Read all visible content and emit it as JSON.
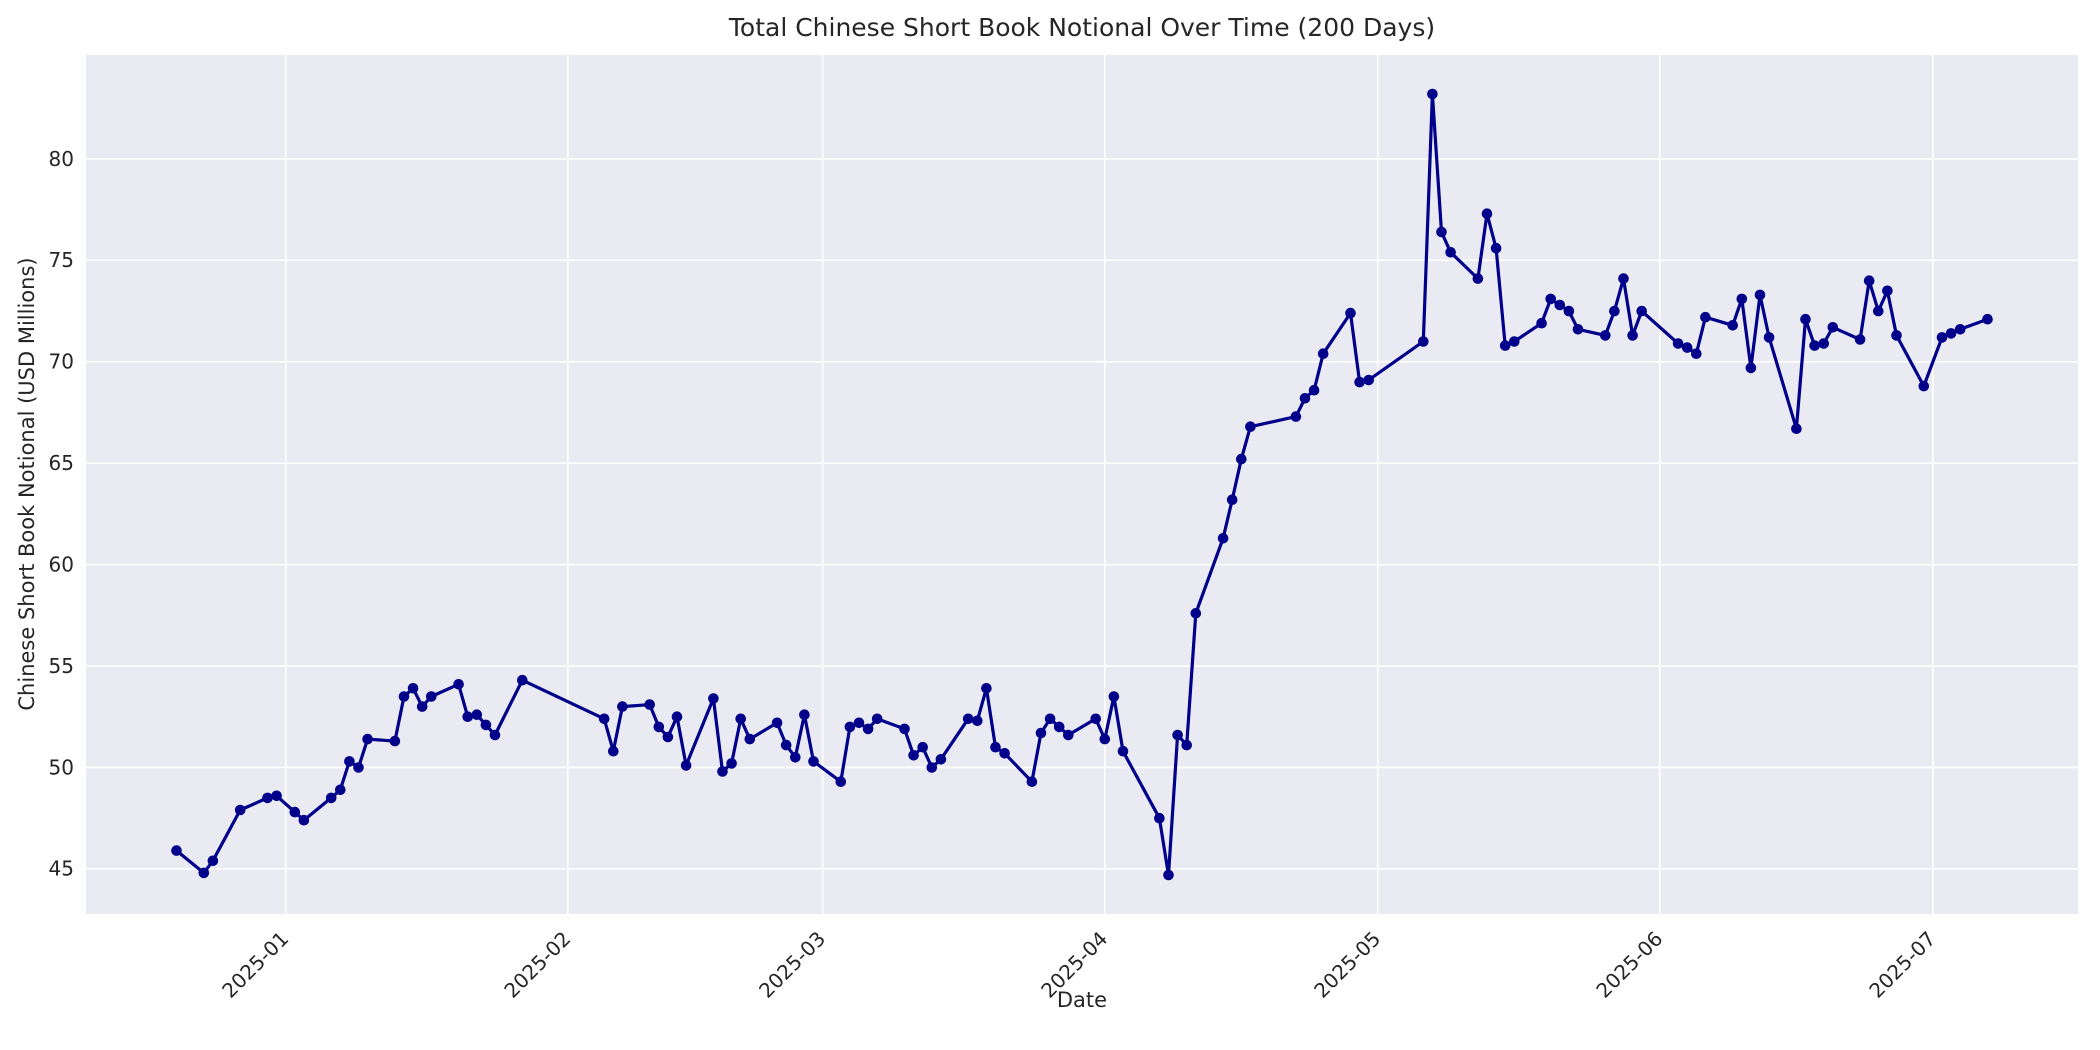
{
  "colors": {
    "line": "#00008B",
    "marker": "#00008B",
    "axes_background": "#EAEAF2",
    "figure_background": "#FFFFFF",
    "grid": "#FFFFFF",
    "text": "#262626"
  },
  "chart_data": {
    "type": "line",
    "title": "Total Chinese Short Book Notional Over Time (200 Days)",
    "xlabel": "Date",
    "ylabel": "Chinese Short Book Notional (USD Millions)",
    "x_tick_labels": [
      "2025-01",
      "2025-02",
      "2025-03",
      "2025-04",
      "2025-05",
      "2025-06",
      "2025-07"
    ],
    "y_ticks": [
      45,
      50,
      55,
      60,
      65,
      70,
      75,
      80
    ],
    "ylim": [
      42.8,
      85.1
    ],
    "grid": true,
    "legend": false,
    "marker": "circle",
    "line_color": "#00008B",
    "series": [
      {
        "name": "Total Chinese Short Book Notional",
        "dates": [
          "2024-12-20",
          "2024-12-23",
          "2024-12-24",
          "2024-12-27",
          "2024-12-30",
          "2024-12-31",
          "2025-01-02",
          "2025-01-03",
          "2025-01-06",
          "2025-01-07",
          "2025-01-08",
          "2025-01-09",
          "2025-01-10",
          "2025-01-13",
          "2025-01-14",
          "2025-01-15",
          "2025-01-16",
          "2025-01-17",
          "2025-01-20",
          "2025-01-21",
          "2025-01-22",
          "2025-01-23",
          "2025-01-24",
          "2025-01-27",
          "2025-02-05",
          "2025-02-06",
          "2025-02-07",
          "2025-02-10",
          "2025-02-11",
          "2025-02-12",
          "2025-02-13",
          "2025-02-14",
          "2025-02-17",
          "2025-02-18",
          "2025-02-19",
          "2025-02-20",
          "2025-02-21",
          "2025-02-24",
          "2025-02-25",
          "2025-02-26",
          "2025-02-27",
          "2025-02-28",
          "2025-03-03",
          "2025-03-04",
          "2025-03-05",
          "2025-03-06",
          "2025-03-07",
          "2025-03-10",
          "2025-03-11",
          "2025-03-12",
          "2025-03-13",
          "2025-03-14",
          "2025-03-17",
          "2025-03-18",
          "2025-03-19",
          "2025-03-20",
          "2025-03-21",
          "2025-03-24",
          "2025-03-25",
          "2025-03-26",
          "2025-03-27",
          "2025-03-28",
          "2025-03-31",
          "2025-04-01",
          "2025-04-02",
          "2025-04-03",
          "2025-04-07",
          "2025-04-08",
          "2025-04-09",
          "2025-04-10",
          "2025-04-11",
          "2025-04-14",
          "2025-04-15",
          "2025-04-16",
          "2025-04-17",
          "2025-04-22",
          "2025-04-23",
          "2025-04-24",
          "2025-04-25",
          "2025-04-28",
          "2025-04-29",
          "2025-04-30",
          "2025-05-06",
          "2025-05-07",
          "2025-05-08",
          "2025-05-09",
          "2025-05-12",
          "2025-05-13",
          "2025-05-14",
          "2025-05-15",
          "2025-05-16",
          "2025-05-19",
          "2025-05-20",
          "2025-05-21",
          "2025-05-22",
          "2025-05-23",
          "2025-05-26",
          "2025-05-27",
          "2025-05-28",
          "2025-05-29",
          "2025-05-30",
          "2025-06-03",
          "2025-06-04",
          "2025-06-05",
          "2025-06-06",
          "2025-06-09",
          "2025-06-10",
          "2025-06-11",
          "2025-06-12",
          "2025-06-13",
          "2025-06-16",
          "2025-06-17",
          "2025-06-18",
          "2025-06-19",
          "2025-06-20",
          "2025-06-23",
          "2025-06-24",
          "2025-06-25",
          "2025-06-26",
          "2025-06-27",
          "2025-06-30",
          "2025-07-02",
          "2025-07-03",
          "2025-07-04",
          "2025-07-07"
        ],
        "values": [
          45.9,
          44.8,
          45.4,
          47.9,
          48.5,
          48.6,
          47.8,
          47.4,
          48.5,
          48.9,
          50.3,
          50.0,
          51.4,
          51.3,
          53.5,
          53.9,
          53.0,
          53.5,
          54.1,
          52.5,
          52.6,
          52.1,
          51.6,
          54.3,
          52.4,
          50.8,
          53.0,
          53.1,
          52.0,
          51.5,
          52.5,
          50.1,
          53.4,
          49.8,
          50.2,
          52.4,
          51.4,
          52.2,
          51.1,
          50.5,
          52.6,
          50.3,
          49.3,
          52.0,
          52.2,
          51.9,
          52.4,
          51.9,
          50.6,
          51.0,
          50.0,
          50.4,
          52.4,
          52.3,
          53.9,
          51.0,
          50.7,
          49.3,
          51.7,
          52.4,
          52.0,
          51.6,
          52.4,
          51.4,
          53.5,
          50.8,
          47.5,
          44.7,
          51.6,
          51.1,
          57.6,
          61.3,
          63.2,
          65.2,
          66.8,
          67.3,
          68.2,
          68.6,
          70.4,
          72.4,
          69.0,
          69.1,
          71.0,
          83.2,
          76.4,
          75.4,
          74.1,
          77.3,
          75.6,
          70.8,
          71.0,
          71.9,
          73.1,
          72.8,
          72.5,
          71.6,
          71.3,
          72.5,
          74.1,
          71.3,
          72.5,
          70.9,
          70.7,
          70.4,
          72.2,
          71.8,
          73.1,
          69.7,
          73.3,
          71.2,
          66.7,
          72.1,
          70.8,
          70.9,
          71.7,
          71.1,
          74.0,
          72.5,
          73.5,
          71.3,
          68.8,
          71.2,
          71.4,
          71.6,
          72.1
        ]
      }
    ]
  }
}
